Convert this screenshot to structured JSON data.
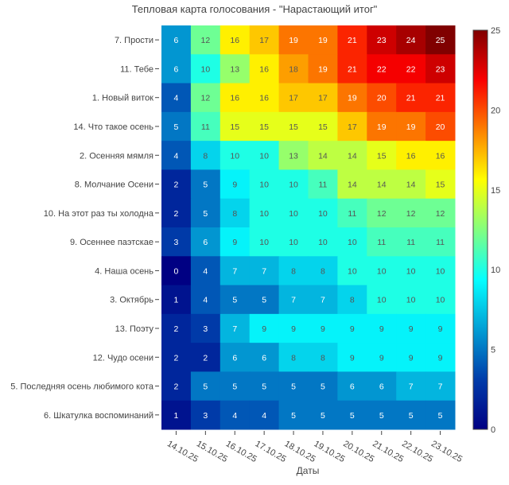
{
  "chart_data": {
    "type": "heatmap",
    "title": "Тепловая карта голосования - \"Нарастающий итог\"",
    "xlabel": "Даты",
    "ylabel": "",
    "x": [
      "14.10.25",
      "15.10.25",
      "16.10.25",
      "17.10.25",
      "18.10.25",
      "19.10.25",
      "20.10.25",
      "21.10.25",
      "22.10.25",
      "23.10.25"
    ],
    "y": [
      "7. Прости",
      "11. Тебе",
      "1. Новый виток",
      "14. Что такое осень",
      "2. Осенняя мямля",
      "8. Молчание Осени",
      "10. На этот раз ты холодна",
      "9. Осеннее паэтскае",
      "4. Наша осень",
      "3. Октябрь",
      "13. Поэту",
      "12. Чудо осени",
      "5. Последняя осень любимого кота",
      "6. Шкатулка воспоминаний"
    ],
    "z": [
      [
        6,
        12,
        16,
        17,
        19,
        19,
        21,
        23,
        24,
        25
      ],
      [
        6,
        10,
        13,
        16,
        18,
        19,
        21,
        22,
        22,
        23
      ],
      [
        4,
        12,
        16,
        16,
        17,
        17,
        19,
        20,
        21,
        21
      ],
      [
        5,
        11,
        15,
        15,
        15,
        15,
        17,
        19,
        19,
        20
      ],
      [
        4,
        8,
        10,
        10,
        13,
        14,
        14,
        15,
        16,
        16
      ],
      [
        2,
        5,
        9,
        10,
        10,
        11,
        14,
        14,
        14,
        15
      ],
      [
        2,
        5,
        8,
        10,
        10,
        10,
        11,
        12,
        12,
        12
      ],
      [
        3,
        6,
        9,
        10,
        10,
        10,
        10,
        11,
        11,
        11
      ],
      [
        0,
        4,
        7,
        7,
        8,
        8,
        10,
        10,
        10,
        10
      ],
      [
        1,
        4,
        5,
        5,
        7,
        7,
        8,
        10,
        10,
        10
      ],
      [
        2,
        3,
        7,
        9,
        9,
        9,
        9,
        9,
        9,
        9
      ],
      [
        2,
        2,
        6,
        6,
        8,
        8,
        9,
        9,
        9,
        9
      ],
      [
        2,
        5,
        5,
        5,
        5,
        5,
        6,
        6,
        7,
        7
      ],
      [
        1,
        3,
        4,
        4,
        5,
        5,
        5,
        5,
        5,
        5
      ]
    ],
    "zlim": [
      0,
      25
    ],
    "colorscale": "Jet",
    "colorbar_ticks": [
      "0",
      "5",
      "10",
      "15",
      "20",
      "25"
    ],
    "colorbar_position": "right"
  }
}
